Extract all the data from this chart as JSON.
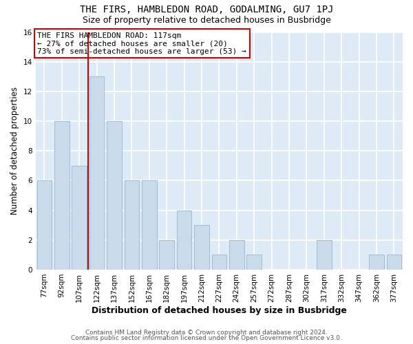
{
  "title": "THE FIRS, HAMBLEDON ROAD, GODALMING, GU7 1PJ",
  "subtitle": "Size of property relative to detached houses in Busbridge",
  "xlabel": "Distribution of detached houses by size in Busbridge",
  "ylabel": "Number of detached properties",
  "bar_labels": [
    "77sqm",
    "92sqm",
    "107sqm",
    "122sqm",
    "137sqm",
    "152sqm",
    "167sqm",
    "182sqm",
    "197sqm",
    "212sqm",
    "227sqm",
    "242sqm",
    "257sqm",
    "272sqm",
    "287sqm",
    "302sqm",
    "317sqm",
    "332sqm",
    "347sqm",
    "362sqm",
    "377sqm"
  ],
  "bar_values": [
    6,
    10,
    7,
    13,
    10,
    6,
    6,
    2,
    4,
    3,
    1,
    2,
    1,
    0,
    0,
    0,
    2,
    0,
    0,
    1,
    1
  ],
  "bar_color": "#c9daea",
  "bar_edge_color": "#a0bcd4",
  "reference_line_index": 3,
  "reference_line_color": "#cc0000",
  "annotation_text": "THE FIRS HAMBLEDON ROAD: 117sqm\n← 27% of detached houses are smaller (20)\n73% of semi-detached houses are larger (53) →",
  "annotation_box_edge": "#cc0000",
  "annotation_box_facecolor": "#ffffff",
  "ylim": [
    0,
    16
  ],
  "yticks": [
    0,
    2,
    4,
    6,
    8,
    10,
    12,
    14,
    16
  ],
  "background_color": "#ffffff",
  "grid_color": "#dce6f0",
  "footer_line1": "Contains HM Land Registry data © Crown copyright and database right 2024.",
  "footer_line2": "Contains public sector information licensed under the Open Government Licence v3.0.",
  "title_fontsize": 10,
  "subtitle_fontsize": 9,
  "xlabel_fontsize": 9,
  "ylabel_fontsize": 8.5,
  "tick_fontsize": 7.5,
  "footer_fontsize": 6.5,
  "annotation_fontsize": 8
}
